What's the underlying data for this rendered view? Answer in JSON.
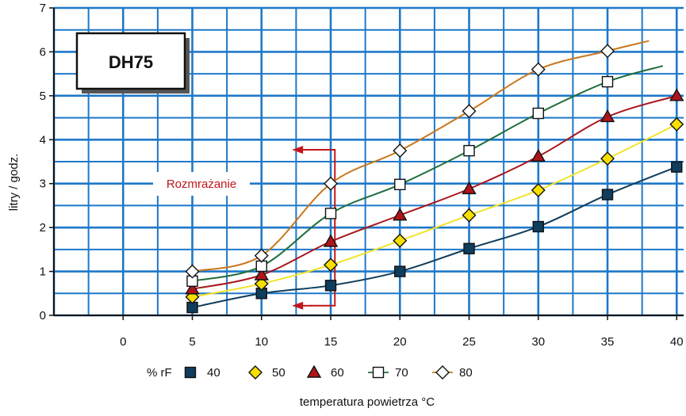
{
  "chart_data": {
    "type": "line",
    "badge": "DH75",
    "xlabel": "temperatura powietrza",
    "xlabel_unit": "°C",
    "ylabel": "litry / godz.",
    "xlim": [
      -5,
      40.5
    ],
    "ylim": [
      0,
      7
    ],
    "x_ticks": [
      "0",
      "5",
      "10",
      "15",
      "20",
      "25",
      "30",
      "35",
      "40"
    ],
    "y_ticks": [
      "0",
      "1",
      "2",
      "3",
      "4",
      "5",
      "6",
      "7"
    ],
    "grid": true,
    "legend_title": "% rF",
    "legend_position": "bottom",
    "annotation": "Rozmrażanie",
    "series": [
      {
        "name": "40",
        "marker": "square-filled",
        "color": "#0f3d5c",
        "fill": "#0f3d5c",
        "x": [
          5,
          10,
          15,
          20,
          25,
          30,
          35,
          40
        ],
        "y": [
          0.18,
          0.5,
          0.68,
          1.0,
          1.52,
          2.02,
          2.75,
          3.38
        ],
        "ext": null
      },
      {
        "name": "50",
        "marker": "diamond-filled",
        "color": "#f2e32a",
        "fill": "#f7df00",
        "x": [
          5,
          10,
          15,
          20,
          25,
          30,
          35,
          40
        ],
        "y": [
          0.42,
          0.72,
          1.15,
          1.7,
          2.28,
          2.85,
          3.57,
          4.35
        ],
        "ext": null
      },
      {
        "name": "60",
        "marker": "triangle-filled",
        "color": "#a8161c",
        "fill": "#b01419",
        "x": [
          5,
          10,
          15,
          20,
          25,
          30,
          35,
          40
        ],
        "y": [
          0.6,
          0.92,
          1.68,
          2.28,
          2.88,
          3.62,
          4.52,
          5.0
        ],
        "ext": null
      },
      {
        "name": "70",
        "marker": "square-open",
        "color": "#1e6e3c",
        "fill": "#ffffff",
        "x": [
          5,
          10,
          15,
          20,
          25,
          30,
          35
        ],
        "y": [
          0.78,
          1.12,
          2.32,
          2.98,
          3.75,
          4.6,
          5.32
        ],
        "ext": [
          39,
          5.68
        ]
      },
      {
        "name": "80",
        "marker": "diamond-open",
        "color": "#c8781e",
        "fill": "#ffffff",
        "x": [
          5,
          10,
          15,
          20,
          25,
          30,
          35
        ],
        "y": [
          1.0,
          1.36,
          3.0,
          3.75,
          4.65,
          5.6,
          6.02
        ],
        "ext": [
          38,
          6.25
        ]
      }
    ]
  }
}
